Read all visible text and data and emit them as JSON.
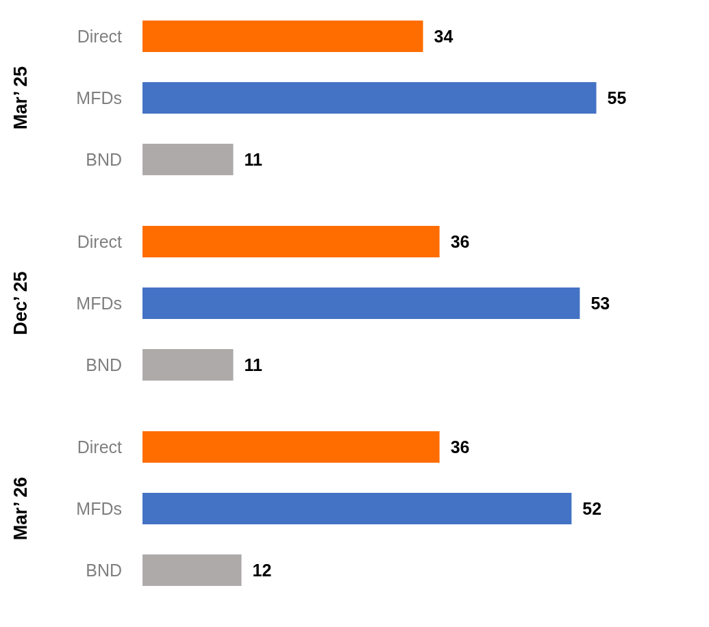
{
  "chart_data": [
    {
      "type": "bar",
      "orientation": "horizontal",
      "ylabel": "Mar’ 25",
      "categories": [
        "Direct",
        "MFDs",
        "BND"
      ],
      "values": [
        34,
        55,
        11
      ],
      "colors": [
        "#ff6d00",
        "#4472c4",
        "#aeaaaa"
      ],
      "data_labels": true,
      "tick_labels": "y",
      "grid": false
    },
    {
      "type": "bar",
      "orientation": "horizontal",
      "ylabel": "Dec’ 25",
      "categories": [
        "Direct",
        "MFDs",
        "BND"
      ],
      "values": [
        36,
        53,
        11
      ],
      "colors": [
        "#ff6d00",
        "#4472c4",
        "#aeaaaa"
      ],
      "data_labels": true,
      "tick_labels": "y",
      "grid": false
    },
    {
      "type": "bar",
      "orientation": "horizontal",
      "ylabel": "Mar’ 26",
      "categories": [
        "Direct",
        "MFDs",
        "BND"
      ],
      "values": [
        36,
        52,
        12
      ],
      "colors": [
        "#ff6d00",
        "#4472c4",
        "#aeaaaa"
      ],
      "data_labels": true,
      "tick_labels": "y",
      "grid": false
    }
  ]
}
